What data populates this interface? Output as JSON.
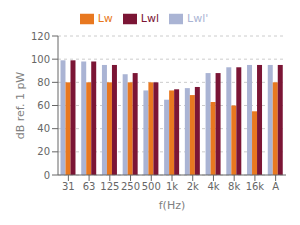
{
  "chart_data": {
    "type": "bar",
    "xlabel": "f(Hz)",
    "ylabel": "dB ref. 1 pW",
    "categories": [
      "31",
      "63",
      "125",
      "250",
      "500",
      "1k",
      "2k",
      "4k",
      "8k",
      "16k",
      "A"
    ],
    "series": [
      {
        "name": "Lwl'",
        "color": "#aab4d4",
        "values": [
          99,
          98,
          95,
          87,
          73,
          65,
          75,
          88,
          93,
          95,
          95
        ]
      },
      {
        "name": "Lw",
        "color": "#e87820",
        "values": [
          80,
          80,
          80,
          80,
          80,
          73,
          69,
          63,
          60,
          55,
          80
        ]
      },
      {
        "name": "Lwl",
        "color": "#7b1535",
        "values": [
          99,
          98,
          95,
          88,
          80,
          74,
          76,
          88,
          93,
          95,
          95
        ]
      }
    ],
    "ylim": [
      0,
      120
    ],
    "yticks": [
      0,
      20,
      40,
      60,
      80,
      100,
      120
    ],
    "grid": true,
    "legend": "top"
  }
}
